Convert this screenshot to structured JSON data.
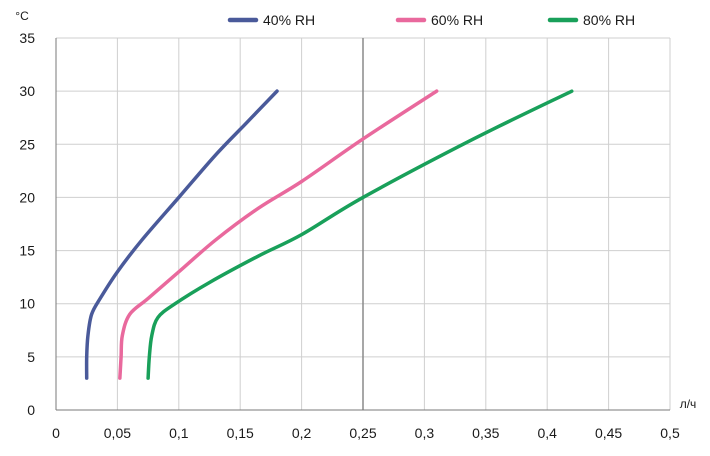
{
  "chart_data": {
    "type": "line",
    "title": "",
    "xlabel": "л/ч",
    "ylabel": "°C",
    "xlim": [
      0,
      0.5
    ],
    "ylim": [
      0,
      35
    ],
    "x_ticks": [
      "0",
      "0,05",
      "0,1",
      "0,15",
      "0,2",
      "0,25",
      "0,3",
      "0,35",
      "0,4",
      "0,45",
      "0,5"
    ],
    "y_ticks": [
      "0",
      "5",
      "10",
      "15",
      "20",
      "25",
      "30",
      "35"
    ],
    "grid": true,
    "legend_position": "top",
    "series": [
      {
        "name": "40% RH",
        "color": "#4a5a9a",
        "x": [
          0.025,
          0.025,
          0.026,
          0.029,
          0.036,
          0.05,
          0.07,
          0.1,
          0.13,
          0.155,
          0.18
        ],
        "y": [
          3,
          5,
          7,
          9,
          10.5,
          13,
          16,
          20,
          24,
          27,
          30
        ]
      },
      {
        "name": "60% RH",
        "color": "#e9699d",
        "x": [
          0.052,
          0.053,
          0.054,
          0.06,
          0.075,
          0.1,
          0.13,
          0.165,
          0.2,
          0.25,
          0.31
        ],
        "y": [
          3,
          5,
          7,
          9,
          10.5,
          13,
          16,
          19,
          21.5,
          25.5,
          30
        ]
      },
      {
        "name": "80% RH",
        "color": "#19a05a",
        "x": [
          0.075,
          0.076,
          0.078,
          0.083,
          0.097,
          0.125,
          0.165,
          0.2,
          0.25,
          0.34,
          0.42
        ],
        "y": [
          3,
          5,
          7,
          8.7,
          10,
          12,
          14.5,
          16.5,
          20,
          25.5,
          30
        ]
      }
    ]
  }
}
